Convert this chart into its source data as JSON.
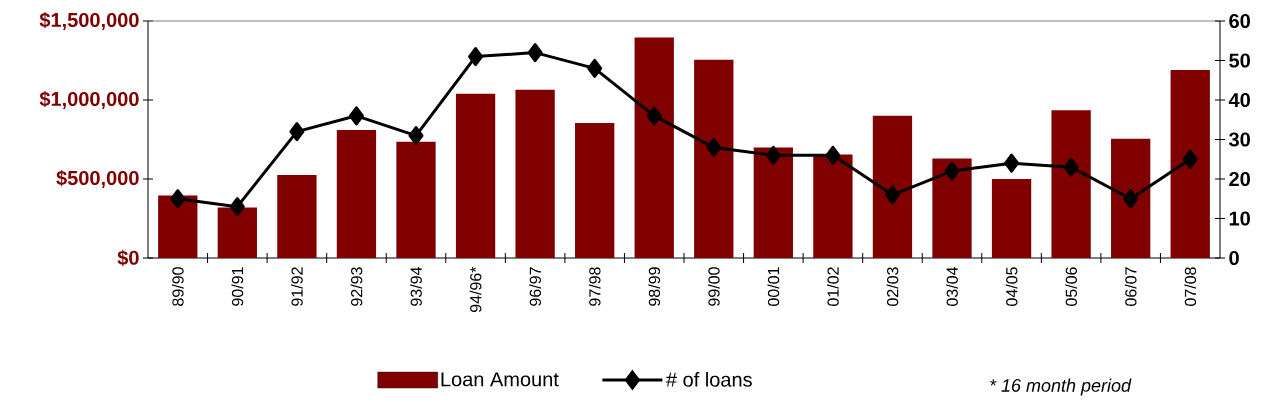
{
  "chart_data": {
    "type": "bar",
    "categories": [
      "89/90",
      "90/91",
      "91/92",
      "92/93",
      "93/94",
      "94/96*",
      "96/97",
      "97/98",
      "98/99",
      "99/00",
      "00/01",
      "01/02",
      "02/03",
      "03/04",
      "04/05",
      "05/06",
      "06/07",
      "07/08"
    ],
    "series": [
      {
        "name": "Loan Amount",
        "color": "#800000",
        "values": [
          395000,
          320000,
          525000,
          810000,
          735000,
          1040000,
          1065000,
          855000,
          1395000,
          1255000,
          700000,
          655000,
          900000,
          630000,
          500000,
          935000,
          755000,
          1190000
        ]
      },
      {
        "name": "# of loans",
        "type": "line",
        "axis": "y2",
        "color": "#000000",
        "values": [
          15,
          13,
          32,
          36,
          31,
          51,
          52,
          48,
          36,
          28,
          26,
          26,
          16,
          22,
          24,
          23,
          15,
          25
        ]
      }
    ],
    "marker": "diamond",
    "line_style": "solid",
    "ylim": [
      0,
      1500000
    ],
    "yticks": [
      {
        "value": 0,
        "label": "$0"
      },
      {
        "value": 500000,
        "label": "$500,000"
      },
      {
        "value": 1000000,
        "label": "$1,000,000"
      },
      {
        "value": 1500000,
        "label": "$1,500,000"
      }
    ],
    "y2lim": [
      0,
      60
    ],
    "y2ticks": [
      0,
      10,
      20,
      30,
      40,
      50,
      60
    ],
    "legend": "bottom",
    "annotations": [
      "* 16 month period"
    ]
  }
}
